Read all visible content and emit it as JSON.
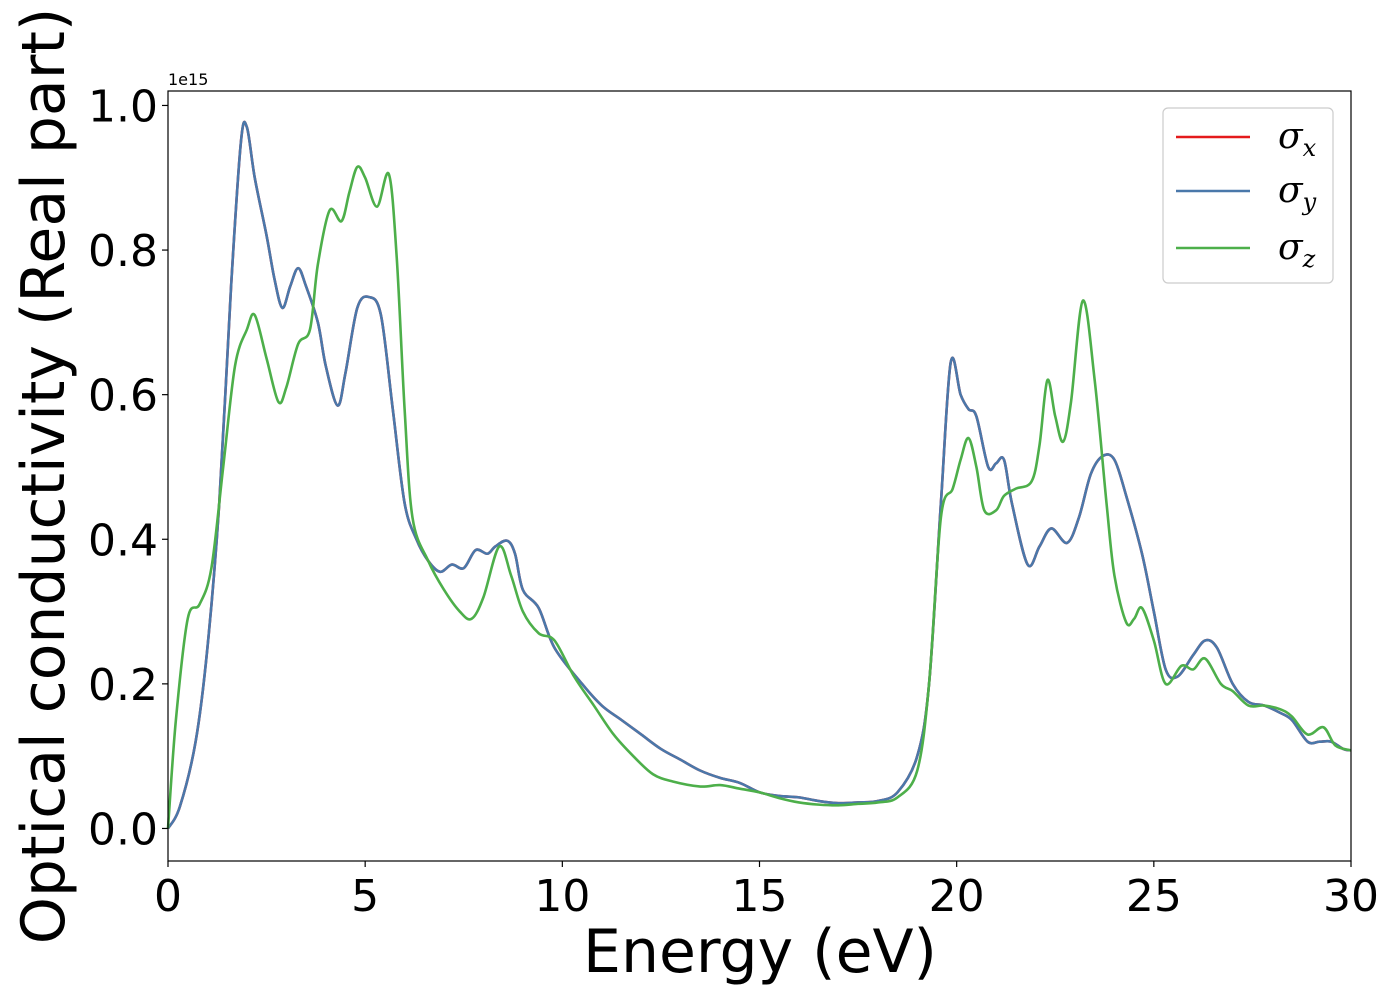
{
  "chart_data": {
    "type": "line",
    "xlabel": "Energy (eV)",
    "ylabel": "Optical conductivity (Real part)",
    "offset_label": "1e15",
    "xlim": [
      0,
      30
    ],
    "ylim": [
      -0.045,
      1.02
    ],
    "xticks": [
      0,
      5,
      10,
      15,
      20,
      25,
      30
    ],
    "xtick_labels": [
      "0",
      "5",
      "10",
      "15",
      "20",
      "25",
      "30"
    ],
    "yticks": [
      0.0,
      0.2,
      0.4,
      0.6,
      0.8,
      1.0
    ],
    "ytick_labels": [
      "0.0",
      "0.2",
      "0.4",
      "0.6",
      "0.8",
      "1.0"
    ],
    "grid": false,
    "legend_position": "top-right",
    "series": [
      {
        "name": "σ",
        "subscript": "x",
        "color": "#e41a1c",
        "points": [
          [
            0,
            0
          ],
          [
            0.3,
            0.03
          ],
          [
            0.7,
            0.12
          ],
          [
            1.0,
            0.25
          ],
          [
            1.3,
            0.45
          ],
          [
            1.6,
            0.75
          ],
          [
            1.85,
            0.95
          ],
          [
            2.0,
            0.97
          ],
          [
            2.2,
            0.9
          ],
          [
            2.5,
            0.82
          ],
          [
            2.7,
            0.76
          ],
          [
            2.9,
            0.72
          ],
          [
            3.1,
            0.75
          ],
          [
            3.3,
            0.775
          ],
          [
            3.5,
            0.75
          ],
          [
            3.8,
            0.7
          ],
          [
            4.0,
            0.64
          ],
          [
            4.3,
            0.585
          ],
          [
            4.5,
            0.63
          ],
          [
            4.8,
            0.72
          ],
          [
            5.1,
            0.735
          ],
          [
            5.4,
            0.71
          ],
          [
            5.7,
            0.58
          ],
          [
            6.0,
            0.45
          ],
          [
            6.3,
            0.4
          ],
          [
            6.6,
            0.37
          ],
          [
            6.9,
            0.355
          ],
          [
            7.2,
            0.365
          ],
          [
            7.5,
            0.36
          ],
          [
            7.8,
            0.385
          ],
          [
            8.1,
            0.38
          ],
          [
            8.3,
            0.39
          ],
          [
            8.6,
            0.398
          ],
          [
            8.8,
            0.38
          ],
          [
            9.0,
            0.33
          ],
          [
            9.4,
            0.305
          ],
          [
            9.8,
            0.25
          ],
          [
            10.5,
            0.2
          ],
          [
            11.0,
            0.17
          ],
          [
            11.5,
            0.15
          ],
          [
            12.0,
            0.13
          ],
          [
            12.5,
            0.11
          ],
          [
            13.0,
            0.095
          ],
          [
            13.5,
            0.08
          ],
          [
            14.0,
            0.07
          ],
          [
            14.5,
            0.063
          ],
          [
            15.0,
            0.05
          ],
          [
            15.5,
            0.045
          ],
          [
            16.0,
            0.043
          ],
          [
            16.5,
            0.038
          ],
          [
            17.0,
            0.035
          ],
          [
            17.5,
            0.036
          ],
          [
            18.0,
            0.038
          ],
          [
            18.5,
            0.05
          ],
          [
            19.0,
            0.1
          ],
          [
            19.3,
            0.2
          ],
          [
            19.6,
            0.45
          ],
          [
            19.85,
            0.645
          ],
          [
            20.1,
            0.6
          ],
          [
            20.3,
            0.58
          ],
          [
            20.5,
            0.57
          ],
          [
            20.8,
            0.5
          ],
          [
            21.0,
            0.505
          ],
          [
            21.2,
            0.51
          ],
          [
            21.4,
            0.45
          ],
          [
            21.8,
            0.365
          ],
          [
            22.1,
            0.39
          ],
          [
            22.4,
            0.415
          ],
          [
            22.8,
            0.395
          ],
          [
            23.1,
            0.43
          ],
          [
            23.4,
            0.49
          ],
          [
            23.7,
            0.515
          ],
          [
            24.0,
            0.51
          ],
          [
            24.3,
            0.46
          ],
          [
            24.7,
            0.38
          ],
          [
            25.0,
            0.3
          ],
          [
            25.3,
            0.22
          ],
          [
            25.6,
            0.21
          ],
          [
            26.0,
            0.24
          ],
          [
            26.3,
            0.26
          ],
          [
            26.6,
            0.25
          ],
          [
            27.0,
            0.2
          ],
          [
            27.4,
            0.175
          ],
          [
            27.8,
            0.17
          ],
          [
            28.2,
            0.16
          ],
          [
            28.5,
            0.15
          ],
          [
            28.9,
            0.12
          ],
          [
            29.2,
            0.12
          ],
          [
            29.5,
            0.12
          ],
          [
            29.8,
            0.11
          ],
          [
            30,
            0.108
          ]
        ]
      },
      {
        "name": "σ",
        "subscript": "y",
        "color": "#4a78aa",
        "points": [
          [
            0,
            0
          ],
          [
            0.3,
            0.03
          ],
          [
            0.7,
            0.12
          ],
          [
            1.0,
            0.25
          ],
          [
            1.3,
            0.45
          ],
          [
            1.6,
            0.75
          ],
          [
            1.85,
            0.95
          ],
          [
            2.0,
            0.97
          ],
          [
            2.2,
            0.9
          ],
          [
            2.5,
            0.82
          ],
          [
            2.7,
            0.76
          ],
          [
            2.9,
            0.72
          ],
          [
            3.1,
            0.75
          ],
          [
            3.3,
            0.775
          ],
          [
            3.5,
            0.75
          ],
          [
            3.8,
            0.7
          ],
          [
            4.0,
            0.64
          ],
          [
            4.3,
            0.585
          ],
          [
            4.5,
            0.63
          ],
          [
            4.8,
            0.72
          ],
          [
            5.1,
            0.735
          ],
          [
            5.4,
            0.71
          ],
          [
            5.7,
            0.58
          ],
          [
            6.0,
            0.45
          ],
          [
            6.3,
            0.4
          ],
          [
            6.6,
            0.37
          ],
          [
            6.9,
            0.355
          ],
          [
            7.2,
            0.365
          ],
          [
            7.5,
            0.36
          ],
          [
            7.8,
            0.385
          ],
          [
            8.1,
            0.38
          ],
          [
            8.3,
            0.39
          ],
          [
            8.6,
            0.398
          ],
          [
            8.8,
            0.38
          ],
          [
            9.0,
            0.33
          ],
          [
            9.4,
            0.305
          ],
          [
            9.8,
            0.25
          ],
          [
            10.5,
            0.2
          ],
          [
            11.0,
            0.17
          ],
          [
            11.5,
            0.15
          ],
          [
            12.0,
            0.13
          ],
          [
            12.5,
            0.11
          ],
          [
            13.0,
            0.095
          ],
          [
            13.5,
            0.08
          ],
          [
            14.0,
            0.07
          ],
          [
            14.5,
            0.063
          ],
          [
            15.0,
            0.05
          ],
          [
            15.5,
            0.045
          ],
          [
            16.0,
            0.043
          ],
          [
            16.5,
            0.038
          ],
          [
            17.0,
            0.035
          ],
          [
            17.5,
            0.036
          ],
          [
            18.0,
            0.038
          ],
          [
            18.5,
            0.05
          ],
          [
            19.0,
            0.1
          ],
          [
            19.3,
            0.2
          ],
          [
            19.6,
            0.45
          ],
          [
            19.85,
            0.645
          ],
          [
            20.1,
            0.6
          ],
          [
            20.3,
            0.58
          ],
          [
            20.5,
            0.57
          ],
          [
            20.8,
            0.5
          ],
          [
            21.0,
            0.505
          ],
          [
            21.2,
            0.51
          ],
          [
            21.4,
            0.45
          ],
          [
            21.8,
            0.365
          ],
          [
            22.1,
            0.39
          ],
          [
            22.4,
            0.415
          ],
          [
            22.8,
            0.395
          ],
          [
            23.1,
            0.43
          ],
          [
            23.4,
            0.49
          ],
          [
            23.7,
            0.515
          ],
          [
            24.0,
            0.51
          ],
          [
            24.3,
            0.46
          ],
          [
            24.7,
            0.38
          ],
          [
            25.0,
            0.3
          ],
          [
            25.3,
            0.22
          ],
          [
            25.6,
            0.21
          ],
          [
            26.0,
            0.24
          ],
          [
            26.3,
            0.26
          ],
          [
            26.6,
            0.25
          ],
          [
            27.0,
            0.2
          ],
          [
            27.4,
            0.175
          ],
          [
            27.8,
            0.17
          ],
          [
            28.2,
            0.16
          ],
          [
            28.5,
            0.15
          ],
          [
            28.9,
            0.12
          ],
          [
            29.2,
            0.12
          ],
          [
            29.5,
            0.12
          ],
          [
            29.8,
            0.11
          ],
          [
            30,
            0.108
          ]
        ]
      },
      {
        "name": "σ",
        "subscript": "z",
        "color": "#4daf4a",
        "points": [
          [
            0,
            0
          ],
          [
            0.2,
            0.15
          ],
          [
            0.5,
            0.29
          ],
          [
            0.8,
            0.31
          ],
          [
            1.1,
            0.36
          ],
          [
            1.4,
            0.5
          ],
          [
            1.7,
            0.64
          ],
          [
            2.0,
            0.69
          ],
          [
            2.2,
            0.71
          ],
          [
            2.5,
            0.65
          ],
          [
            2.8,
            0.59
          ],
          [
            3.0,
            0.61
          ],
          [
            3.3,
            0.67
          ],
          [
            3.6,
            0.69
          ],
          [
            3.8,
            0.78
          ],
          [
            4.1,
            0.855
          ],
          [
            4.4,
            0.84
          ],
          [
            4.6,
            0.88
          ],
          [
            4.8,
            0.915
          ],
          [
            5.0,
            0.9
          ],
          [
            5.3,
            0.86
          ],
          [
            5.6,
            0.905
          ],
          [
            5.8,
            0.79
          ],
          [
            6.0,
            0.58
          ],
          [
            6.2,
            0.43
          ],
          [
            6.6,
            0.37
          ],
          [
            7.0,
            0.33
          ],
          [
            7.4,
            0.3
          ],
          [
            7.7,
            0.29
          ],
          [
            8.0,
            0.32
          ],
          [
            8.4,
            0.39
          ],
          [
            8.7,
            0.35
          ],
          [
            9.0,
            0.3
          ],
          [
            9.4,
            0.27
          ],
          [
            9.8,
            0.26
          ],
          [
            10.3,
            0.21
          ],
          [
            10.8,
            0.17
          ],
          [
            11.3,
            0.13
          ],
          [
            11.8,
            0.1
          ],
          [
            12.3,
            0.075
          ],
          [
            12.8,
            0.065
          ],
          [
            13.5,
            0.058
          ],
          [
            14.0,
            0.06
          ],
          [
            14.5,
            0.055
          ],
          [
            15.0,
            0.05
          ],
          [
            15.5,
            0.042
          ],
          [
            16.0,
            0.036
          ],
          [
            16.5,
            0.033
          ],
          [
            17.0,
            0.032
          ],
          [
            17.5,
            0.034
          ],
          [
            18.0,
            0.036
          ],
          [
            18.5,
            0.043
          ],
          [
            19.0,
            0.08
          ],
          [
            19.3,
            0.2
          ],
          [
            19.6,
            0.43
          ],
          [
            19.9,
            0.47
          ],
          [
            20.1,
            0.51
          ],
          [
            20.3,
            0.54
          ],
          [
            20.5,
            0.5
          ],
          [
            20.7,
            0.44
          ],
          [
            21.0,
            0.44
          ],
          [
            21.2,
            0.46
          ],
          [
            21.5,
            0.47
          ],
          [
            21.9,
            0.48
          ],
          [
            22.1,
            0.53
          ],
          [
            22.3,
            0.62
          ],
          [
            22.5,
            0.57
          ],
          [
            22.7,
            0.535
          ],
          [
            22.9,
            0.59
          ],
          [
            23.2,
            0.73
          ],
          [
            23.5,
            0.62
          ],
          [
            23.8,
            0.45
          ],
          [
            24.0,
            0.35
          ],
          [
            24.3,
            0.285
          ],
          [
            24.5,
            0.29
          ],
          [
            24.7,
            0.305
          ],
          [
            25.0,
            0.26
          ],
          [
            25.3,
            0.2
          ],
          [
            25.7,
            0.225
          ],
          [
            26.0,
            0.22
          ],
          [
            26.3,
            0.235
          ],
          [
            26.7,
            0.2
          ],
          [
            27.0,
            0.19
          ],
          [
            27.4,
            0.17
          ],
          [
            27.8,
            0.17
          ],
          [
            28.2,
            0.165
          ],
          [
            28.5,
            0.155
          ],
          [
            28.9,
            0.13
          ],
          [
            29.3,
            0.14
          ],
          [
            29.6,
            0.115
          ],
          [
            30,
            0.108
          ]
        ]
      }
    ]
  }
}
